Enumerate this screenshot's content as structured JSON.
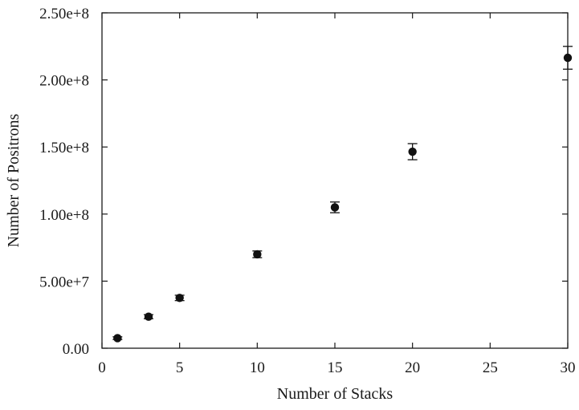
{
  "chart_data": {
    "type": "scatter",
    "title": "",
    "xlabel": "Number of Stacks",
    "ylabel": "Number of Positrons",
    "xlim": [
      0,
      30
    ],
    "ylim": [
      0,
      250000000
    ],
    "x_ticks": [
      0,
      5,
      10,
      15,
      20,
      25,
      30
    ],
    "x_tick_labels": [
      "0",
      "5",
      "10",
      "15",
      "20",
      "25",
      "30"
    ],
    "y_ticks": [
      0,
      50000000,
      100000000,
      150000000,
      200000000,
      250000000
    ],
    "y_tick_labels": [
      "0.00",
      "5.00e+7",
      "1.00e+8",
      "1.50e+8",
      "2.00e+8",
      "2.50e+8"
    ],
    "grid": false,
    "legend": "none",
    "series": [
      {
        "points": [
          {
            "x": 1,
            "y": 7500000,
            "err": 1000000
          },
          {
            "x": 3,
            "y": 23500000,
            "err": 1500000
          },
          {
            "x": 5,
            "y": 37500000,
            "err": 2000000
          },
          {
            "x": 10,
            "y": 70000000,
            "err": 2500000
          },
          {
            "x": 15,
            "y": 105000000,
            "err": 4000000
          },
          {
            "x": 20,
            "y": 146500000,
            "err": 6000000
          },
          {
            "x": 30,
            "y": 216500000,
            "err": 8500000
          }
        ]
      }
    ],
    "colors": {
      "marker": "#111111",
      "axis": "#1a1a1a"
    }
  }
}
